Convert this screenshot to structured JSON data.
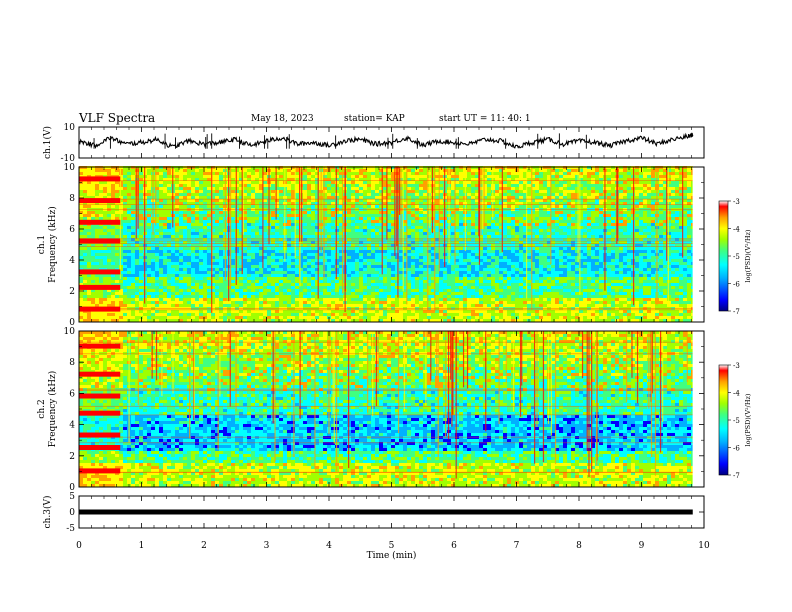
{
  "header": {
    "title": "VLF Spectra",
    "date": "May 18, 2023",
    "station": "station= KAP",
    "start_ut": "start  UT =   11: 40: 1"
  },
  "colors": {
    "colormap": [
      "#000080",
      "#0000ff",
      "#00b0ff",
      "#00ffff",
      "#40ff80",
      "#a0ff00",
      "#ffff00",
      "#ffa000",
      "#ff0000",
      "#ffffff"
    ],
    "trace": "#000000"
  },
  "chart_data": [
    {
      "type": "line",
      "panel": "ch1-voltage",
      "ylabel": "ch.1(V)",
      "ylim": [
        -10,
        10
      ],
      "yticks": [
        "10",
        "-10"
      ],
      "xlim": [
        0,
        10
      ],
      "series": [
        {
          "x": [
            0,
            0.25,
            0.5,
            0.75,
            1,
            1.25,
            1.5,
            1.75,
            2,
            2.25,
            2.5,
            2.75,
            3,
            3.25,
            3.5,
            3.75,
            4,
            4.25,
            4.5,
            4.75,
            5,
            5.25,
            5.5,
            5.75,
            6,
            6.25,
            6.5,
            6.75,
            7,
            7.25,
            7.5,
            7.75,
            8,
            8.25,
            8.5,
            8.75,
            9,
            9.25,
            9.5,
            9.75,
            9.82
          ],
          "y": [
            1,
            -2,
            3,
            -1,
            0,
            2,
            -3,
            1,
            -1,
            0,
            2,
            -2,
            1,
            3,
            -1,
            0,
            -2,
            1,
            2,
            -1,
            0,
            3,
            -2,
            1,
            0,
            -1,
            2,
            1,
            -3,
            0,
            2,
            -1,
            1,
            0,
            -2,
            1,
            3,
            -1,
            2,
            4,
            5
          ]
        }
      ]
    },
    {
      "type": "heatmap",
      "panel": "ch1-spectrogram",
      "ylabel": "ch.1\nFrequency (kHz)",
      "ylim": [
        0,
        10
      ],
      "yticks": [
        "0",
        "2",
        "4",
        "6",
        "8",
        "10"
      ],
      "xlim": [
        0,
        10
      ],
      "colorbar": {
        "label": "log(PSD)(V²/Hz)",
        "range": [
          -7,
          -3
        ],
        "ticks": [
          "-3",
          "-4",
          "-5",
          "-6",
          "-7"
        ]
      }
    },
    {
      "type": "heatmap",
      "panel": "ch2-spectrogram",
      "ylabel": "ch.2\nFrequency (kHz)",
      "ylim": [
        0,
        10
      ],
      "yticks": [
        "0",
        "2",
        "4",
        "6",
        "8",
        "10"
      ],
      "xlim": [
        0,
        10
      ],
      "colorbar": {
        "label": "log(PSD)(V²/Hz)",
        "range": [
          -7,
          -3
        ],
        "ticks": [
          "-3",
          "-4",
          "-5",
          "-6",
          "-7"
        ]
      }
    },
    {
      "type": "line",
      "panel": "ch3-voltage",
      "ylabel": "ch.3(V)",
      "ylim": [
        -5,
        5
      ],
      "yticks": [
        "5",
        "0",
        "-5"
      ],
      "xlim": [
        0,
        10
      ],
      "series": [
        {
          "x": [
            0,
            9.82
          ],
          "y": [
            0,
            0
          ]
        }
      ]
    }
  ],
  "xaxis": {
    "label": "Time (min)",
    "ticks": [
      "0",
      "1",
      "2",
      "3",
      "4",
      "5",
      "6",
      "7",
      "8",
      "9",
      "10"
    ]
  }
}
